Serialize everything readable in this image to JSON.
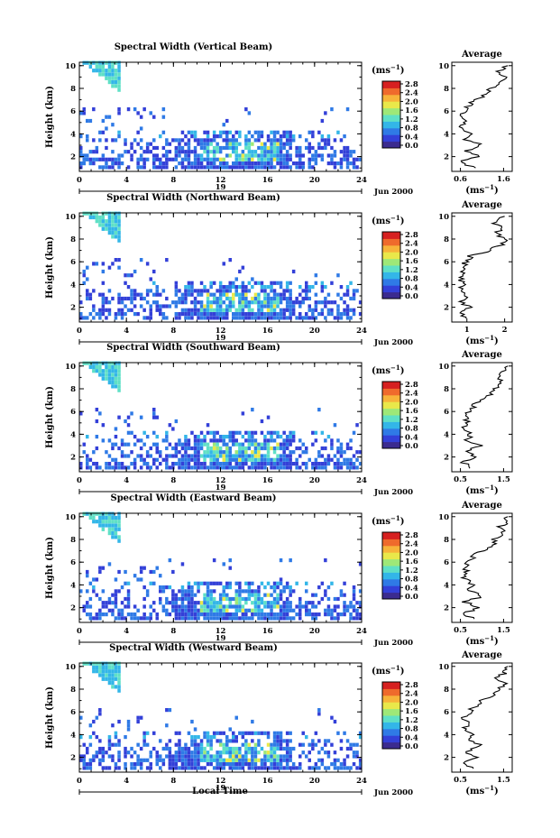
{
  "figure": {
    "xlabel": "Local Time",
    "date_label": "Jun 2000",
    "day_label": "19",
    "ylabel": "Height (km)",
    "unit_label": "(ms",
    "unit_exp": "−1",
    "avg_title": "Average"
  },
  "colorscale": {
    "ticks": [
      "2.8",
      "2.4",
      "2.0",
      "1.6",
      "1.2",
      "0.8",
      "0.4",
      "0.0"
    ],
    "colors": [
      "#3b2b8f",
      "#3340d8",
      "#2f7ae6",
      "#33b6e8",
      "#5fe0c6",
      "#9ee878",
      "#e9e84a",
      "#f7b33a",
      "#ef6a2c",
      "#d62020"
    ]
  },
  "chart_data": [
    {
      "type": "heatmap",
      "title": "Spectral Width (Vertical Beam)",
      "x_ticks": [
        0,
        4,
        8,
        12,
        16,
        20,
        24
      ],
      "y_ticks": [
        2,
        4,
        6,
        8,
        10
      ],
      "xlim": [
        0,
        24
      ],
      "ylim": [
        0.7,
        10.3
      ],
      "avg": {
        "title": "Average",
        "x_ticks": [
          "0.6",
          "1.6"
        ],
        "xlim": [
          0.4,
          1.8
        ],
        "profile": [
          [
            1.0,
            0.9
          ],
          [
            1.5,
            0.6
          ],
          [
            2.0,
            1.0
          ],
          [
            2.5,
            0.7
          ],
          [
            3.0,
            1.1
          ],
          [
            3.5,
            0.7
          ],
          [
            4.0,
            0.8
          ],
          [
            4.5,
            0.6
          ],
          [
            5.0,
            0.7
          ],
          [
            5.5,
            0.65
          ],
          [
            6.0,
            0.7
          ],
          [
            6.5,
            0.8
          ],
          [
            7.0,
            0.95
          ],
          [
            7.5,
            1.2
          ],
          [
            8.0,
            1.3
          ],
          [
            8.5,
            1.5
          ],
          [
            9.0,
            1.6
          ],
          [
            9.5,
            1.5
          ],
          [
            10.0,
            1.7
          ]
        ]
      }
    },
    {
      "type": "heatmap",
      "title": "Spectral Width (Northward Beam)",
      "x_ticks": [
        0,
        4,
        8,
        12,
        16,
        20,
        24
      ],
      "y_ticks": [
        2,
        4,
        6,
        8,
        10
      ],
      "xlim": [
        0,
        24
      ],
      "ylim": [
        0.7,
        10.3
      ],
      "avg": {
        "title": "Average",
        "x_ticks": [
          "1",
          "2"
        ],
        "xlim": [
          0.6,
          2.2
        ],
        "profile": [
          [
            1.0,
            1.0
          ],
          [
            1.5,
            0.8
          ],
          [
            2.0,
            1.1
          ],
          [
            2.5,
            0.8
          ],
          [
            3.0,
            1.0
          ],
          [
            3.5,
            0.85
          ],
          [
            4.0,
            0.9
          ],
          [
            4.5,
            0.85
          ],
          [
            5.0,
            0.9
          ],
          [
            5.5,
            0.9
          ],
          [
            6.0,
            0.95
          ],
          [
            6.5,
            1.1
          ],
          [
            7.0,
            1.6
          ],
          [
            7.5,
            1.9
          ],
          [
            8.0,
            2.0
          ],
          [
            8.5,
            1.8
          ],
          [
            9.0,
            1.9
          ],
          [
            9.5,
            1.7
          ],
          [
            10.0,
            2.0
          ]
        ]
      }
    },
    {
      "type": "heatmap",
      "title": "Spectral Width (Southward Beam)",
      "x_ticks": [
        0,
        4,
        8,
        12,
        16,
        20,
        24
      ],
      "y_ticks": [
        2,
        4,
        6,
        8,
        10
      ],
      "xlim": [
        0,
        24
      ],
      "ylim": [
        0.7,
        10.3
      ],
      "avg": {
        "title": "Average",
        "x_ticks": [
          "0.5",
          "1.5"
        ],
        "xlim": [
          0.3,
          1.7
        ],
        "profile": [
          [
            1.0,
            0.8
          ],
          [
            1.5,
            0.55
          ],
          [
            2.0,
            0.9
          ],
          [
            2.5,
            0.6
          ],
          [
            3.0,
            1.0
          ],
          [
            3.5,
            0.65
          ],
          [
            4.0,
            0.75
          ],
          [
            4.5,
            0.6
          ],
          [
            5.0,
            0.65
          ],
          [
            5.5,
            0.6
          ],
          [
            6.0,
            0.7
          ],
          [
            6.5,
            0.8
          ],
          [
            7.0,
            1.0
          ],
          [
            7.5,
            1.2
          ],
          [
            8.0,
            1.3
          ],
          [
            8.5,
            1.5
          ],
          [
            9.0,
            1.4
          ],
          [
            9.5,
            1.5
          ],
          [
            10.0,
            1.6
          ]
        ]
      }
    },
    {
      "type": "heatmap",
      "title": "Spectral Width (Eastward Beam)",
      "x_ticks": [
        0,
        4,
        8,
        12,
        16,
        20,
        24
      ],
      "y_ticks": [
        2,
        4,
        6,
        8,
        10
      ],
      "xlim": [
        0,
        24
      ],
      "ylim": [
        0.7,
        10.3
      ],
      "avg": {
        "title": "Average",
        "x_ticks": [
          "0.5",
          "1.5"
        ],
        "xlim": [
          0.3,
          1.7
        ],
        "profile": [
          [
            1.0,
            0.8
          ],
          [
            1.5,
            0.55
          ],
          [
            2.0,
            0.95
          ],
          [
            2.5,
            0.6
          ],
          [
            3.0,
            1.0
          ],
          [
            3.5,
            0.7
          ],
          [
            4.0,
            0.8
          ],
          [
            4.5,
            0.6
          ],
          [
            5.0,
            0.65
          ],
          [
            5.5,
            0.6
          ],
          [
            6.0,
            0.7
          ],
          [
            6.5,
            0.8
          ],
          [
            7.0,
            1.0
          ],
          [
            7.5,
            1.25
          ],
          [
            8.0,
            1.3
          ],
          [
            8.5,
            1.5
          ],
          [
            9.0,
            1.4
          ],
          [
            9.5,
            1.55
          ],
          [
            10.0,
            1.6
          ]
        ]
      }
    },
    {
      "type": "heatmap",
      "title": "Spectral Width (Westward Beam)",
      "x_ticks": [
        0,
        4,
        8,
        12,
        16,
        20,
        24
      ],
      "y_ticks": [
        2,
        4,
        6,
        8,
        10
      ],
      "xlim": [
        0,
        24
      ],
      "ylim": [
        0.7,
        10.3
      ],
      "avg": {
        "title": "Average",
        "x_ticks": [
          "0.5",
          "1.5"
        ],
        "xlim": [
          0.3,
          1.7
        ],
        "profile": [
          [
            1.0,
            0.85
          ],
          [
            1.5,
            0.55
          ],
          [
            2.0,
            0.95
          ],
          [
            2.5,
            0.6
          ],
          [
            3.0,
            1.0
          ],
          [
            3.5,
            0.7
          ],
          [
            4.0,
            0.8
          ],
          [
            4.5,
            0.6
          ],
          [
            5.0,
            0.65
          ],
          [
            5.5,
            0.6
          ],
          [
            6.0,
            0.7
          ],
          [
            6.5,
            0.85
          ],
          [
            7.0,
            1.0
          ],
          [
            7.5,
            1.3
          ],
          [
            8.0,
            1.4
          ],
          [
            8.5,
            1.5
          ],
          [
            9.0,
            1.35
          ],
          [
            9.5,
            1.55
          ],
          [
            10.0,
            1.6
          ]
        ]
      }
    }
  ]
}
